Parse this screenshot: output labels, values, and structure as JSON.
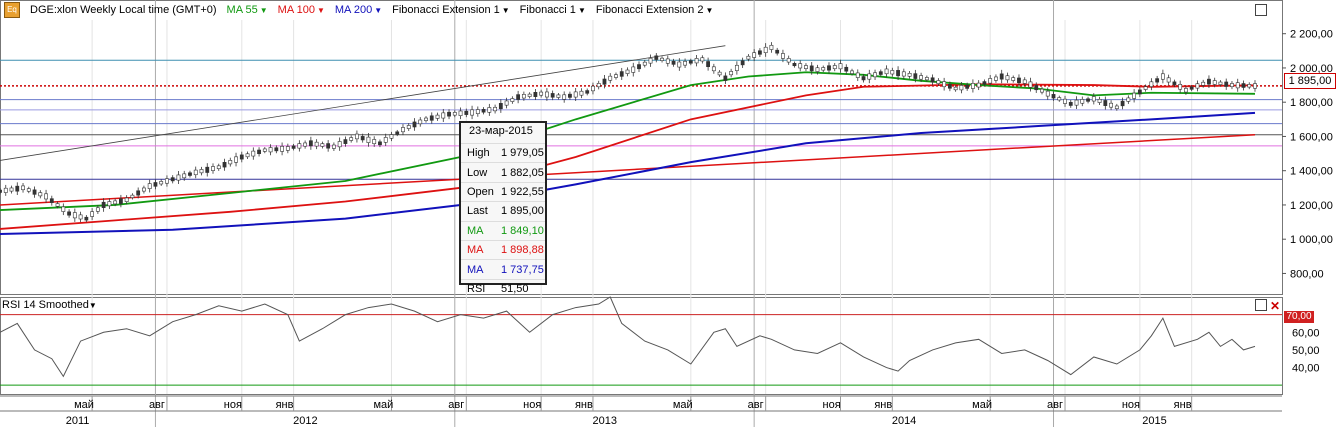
{
  "header": {
    "symbol": "DGE:xlon Weekly Local time (GMT+0)",
    "icon": "eq-icon",
    "indicators": [
      {
        "label": "MA 55",
        "color": "#119911"
      },
      {
        "label": "MA 100",
        "color": "#dd1111"
      },
      {
        "label": "MA 200",
        "color": "#1111bb"
      },
      {
        "label": "Fibonacci Extension 1",
        "color": "#000000"
      },
      {
        "label": "Fibonacci 1",
        "color": "#000000"
      },
      {
        "label": "Fibonacci Extension 2",
        "color": "#000000"
      }
    ]
  },
  "tooltip": {
    "date": "23-мар-2015",
    "rows": [
      {
        "label": "High",
        "value": "1 979,05",
        "color": "#000000"
      },
      {
        "label": "Low",
        "value": "1 882,05",
        "color": "#000000"
      },
      {
        "label": "Open",
        "value": "1 922,55",
        "color": "#000000"
      },
      {
        "label": "Last",
        "value": "1 895,00",
        "color": "#000000"
      },
      {
        "label": "MA",
        "value": "1 849,10",
        "color": "#119911"
      },
      {
        "label": "MA",
        "value": "1 898,88",
        "color": "#dd1111"
      },
      {
        "label": "MA",
        "value": "1 737,75",
        "color": "#1111bb"
      },
      {
        "label": "RSI",
        "value": "51,50",
        "color": "#000000"
      }
    ]
  },
  "price_tag": "1 895,00",
  "rsi_panel": {
    "title": "RSI 14 Smoothed",
    "level_label": "70,00"
  },
  "chart_data": [
    {
      "type": "line",
      "title": "",
      "y_ticks": [
        "800,00",
        "1 000,00",
        "1 200,00",
        "1 400,00",
        "1 600,00",
        "1 800,00",
        "1 895,00",
        "2 000,00",
        "2 200,00"
      ],
      "ylim": [
        680,
        2280
      ],
      "x_months": [
        {
          "label": "май",
          "w": 16
        },
        {
          "label": "авг",
          "w": 29
        },
        {
          "label": "ноя",
          "w": 42
        },
        {
          "label": "янв",
          "w": 51
        },
        {
          "label": "май",
          "w": 68
        },
        {
          "label": "авг",
          "w": 81
        },
        {
          "label": "ноя",
          "w": 94
        },
        {
          "label": "янв",
          "w": 103
        },
        {
          "label": "май",
          "w": 120
        },
        {
          "label": "авг",
          "w": 133
        },
        {
          "label": "ноя",
          "w": 146
        },
        {
          "label": "янв",
          "w": 155
        },
        {
          "label": "май",
          "w": 172
        },
        {
          "label": "авг",
          "w": 185
        },
        {
          "label": "ноя",
          "w": 198
        },
        {
          "label": "янв",
          "w": 207
        }
      ],
      "x_years": [
        {
          "label": "2011",
          "start": 0,
          "end": 27
        },
        {
          "label": "2012",
          "start": 27,
          "end": 79
        },
        {
          "label": "2013",
          "start": 79,
          "end": 131
        },
        {
          "label": "2014",
          "start": 131,
          "end": 183
        },
        {
          "label": "2015",
          "start": 183,
          "end": 218
        }
      ],
      "week_range": [
        0,
        218
      ],
      "price_points": [
        [
          0,
          1280
        ],
        [
          4,
          1300
        ],
        [
          8,
          1250
        ],
        [
          12,
          1150
        ],
        [
          15,
          1120
        ],
        [
          18,
          1200
        ],
        [
          22,
          1230
        ],
        [
          26,
          1310
        ],
        [
          30,
          1350
        ],
        [
          34,
          1390
        ],
        [
          38,
          1420
        ],
        [
          42,
          1480
        ],
        [
          46,
          1520
        ],
        [
          50,
          1530
        ],
        [
          54,
          1560
        ],
        [
          58,
          1540
        ],
        [
          62,
          1600
        ],
        [
          66,
          1560
        ],
        [
          70,
          1640
        ],
        [
          74,
          1700
        ],
        [
          78,
          1730
        ],
        [
          82,
          1740
        ],
        [
          86,
          1760
        ],
        [
          90,
          1830
        ],
        [
          94,
          1850
        ],
        [
          98,
          1830
        ],
        [
          102,
          1860
        ],
        [
          106,
          1940
        ],
        [
          110,
          1990
        ],
        [
          114,
          2060
        ],
        [
          118,
          2020
        ],
        [
          122,
          2050
        ],
        [
          126,
          1940
        ],
        [
          130,
          2060
        ],
        [
          134,
          2120
        ],
        [
          138,
          2020
        ],
        [
          142,
          1990
        ],
        [
          146,
          2010
        ],
        [
          150,
          1940
        ],
        [
          154,
          1980
        ],
        [
          158,
          1960
        ],
        [
          162,
          1930
        ],
        [
          166,
          1880
        ],
        [
          170,
          1900
        ],
        [
          174,
          1950
        ],
        [
          178,
          1920
        ],
        [
          182,
          1850
        ],
        [
          186,
          1790
        ],
        [
          190,
          1820
        ],
        [
          194,
          1770
        ],
        [
          198,
          1860
        ],
        [
          202,
          1950
        ],
        [
          206,
          1870
        ],
        [
          210,
          1920
        ],
        [
          214,
          1900
        ],
        [
          218,
          1895
        ]
      ],
      "ma55": [
        [
          0,
          1170
        ],
        [
          20,
          1200
        ],
        [
          40,
          1270
        ],
        [
          60,
          1340
        ],
        [
          80,
          1480
        ],
        [
          100,
          1700
        ],
        [
          120,
          1900
        ],
        [
          130,
          1950
        ],
        [
          140,
          1975
        ],
        [
          150,
          1960
        ],
        [
          160,
          1925
        ],
        [
          170,
          1900
        ],
        [
          180,
          1880
        ],
        [
          190,
          1840
        ],
        [
          200,
          1855
        ],
        [
          218,
          1849
        ]
      ],
      "ma100": [
        [
          0,
          1060
        ],
        [
          20,
          1110
        ],
        [
          40,
          1160
        ],
        [
          60,
          1220
        ],
        [
          80,
          1300
        ],
        [
          100,
          1480
        ],
        [
          120,
          1700
        ],
        [
          140,
          1840
        ],
        [
          150,
          1890
        ],
        [
          170,
          1905
        ],
        [
          190,
          1900
        ],
        [
          200,
          1890
        ],
        [
          218,
          1899
        ]
      ],
      "ma200": [
        [
          0,
          1030
        ],
        [
          30,
          1055
        ],
        [
          60,
          1120
        ],
        [
          80,
          1200
        ],
        [
          100,
          1320
        ],
        [
          120,
          1450
        ],
        [
          140,
          1560
        ],
        [
          160,
          1620
        ],
        [
          180,
          1660
        ],
        [
          200,
          1700
        ],
        [
          218,
          1738
        ]
      ],
      "long_red_trend": [
        [
          0,
          1200
        ],
        [
          218,
          1610
        ]
      ],
      "channel_line": [
        [
          0,
          1460
        ],
        [
          126,
          2130
        ]
      ],
      "fib_levels": [
        {
          "value": 2045,
          "color": "#3f8fb0"
        },
        {
          "value": 1815,
          "color": "#6a7acb"
        },
        {
          "value": 1755,
          "color": "#9a9ae0"
        },
        {
          "value": 1675,
          "color": "#6a7acb"
        },
        {
          "value": 1610,
          "color": "#555555"
        },
        {
          "value": 1545,
          "color": "#e070e0"
        },
        {
          "value": 1350,
          "color": "#333399"
        }
      ],
      "last_price": 1895
    },
    {
      "type": "line",
      "title": "RSI 14 Smoothed",
      "ylim": [
        25,
        80
      ],
      "y_ticks": [
        "40,00",
        "50,00",
        "60,00",
        "70,00"
      ],
      "levels": [
        70,
        30
      ],
      "points": [
        [
          0,
          60
        ],
        [
          3,
          65
        ],
        [
          6,
          50
        ],
        [
          9,
          45
        ],
        [
          11,
          35
        ],
        [
          14,
          55
        ],
        [
          18,
          60
        ],
        [
          22,
          62
        ],
        [
          26,
          58
        ],
        [
          30,
          66
        ],
        [
          34,
          70
        ],
        [
          38,
          75
        ],
        [
          42,
          72
        ],
        [
          46,
          76
        ],
        [
          50,
          70
        ],
        [
          52,
          55
        ],
        [
          56,
          62
        ],
        [
          60,
          70
        ],
        [
          64,
          74
        ],
        [
          68,
          76
        ],
        [
          72,
          72
        ],
        [
          76,
          66
        ],
        [
          80,
          70
        ],
        [
          84,
          68
        ],
        [
          88,
          72
        ],
        [
          92,
          60
        ],
        [
          96,
          70
        ],
        [
          100,
          74
        ],
        [
          104,
          76
        ],
        [
          106,
          80
        ],
        [
          108,
          65
        ],
        [
          112,
          55
        ],
        [
          116,
          50
        ],
        [
          120,
          42
        ],
        [
          124,
          60
        ],
        [
          126,
          62
        ],
        [
          128,
          52
        ],
        [
          132,
          58
        ],
        [
          134,
          56
        ],
        [
          138,
          50
        ],
        [
          142,
          48
        ],
        [
          146,
          54
        ],
        [
          150,
          46
        ],
        [
          154,
          40
        ],
        [
          156,
          38
        ],
        [
          158,
          44
        ],
        [
          162,
          50
        ],
        [
          166,
          54
        ],
        [
          170,
          56
        ],
        [
          174,
          48
        ],
        [
          178,
          50
        ],
        [
          182,
          44
        ],
        [
          186,
          36
        ],
        [
          190,
          46
        ],
        [
          194,
          42
        ],
        [
          198,
          50
        ],
        [
          200,
          58
        ],
        [
          202,
          68
        ],
        [
          204,
          52
        ],
        [
          208,
          56
        ],
        [
          210,
          60
        ],
        [
          212,
          52
        ],
        [
          214,
          56
        ],
        [
          216,
          50
        ],
        [
          218,
          52
        ]
      ]
    }
  ]
}
